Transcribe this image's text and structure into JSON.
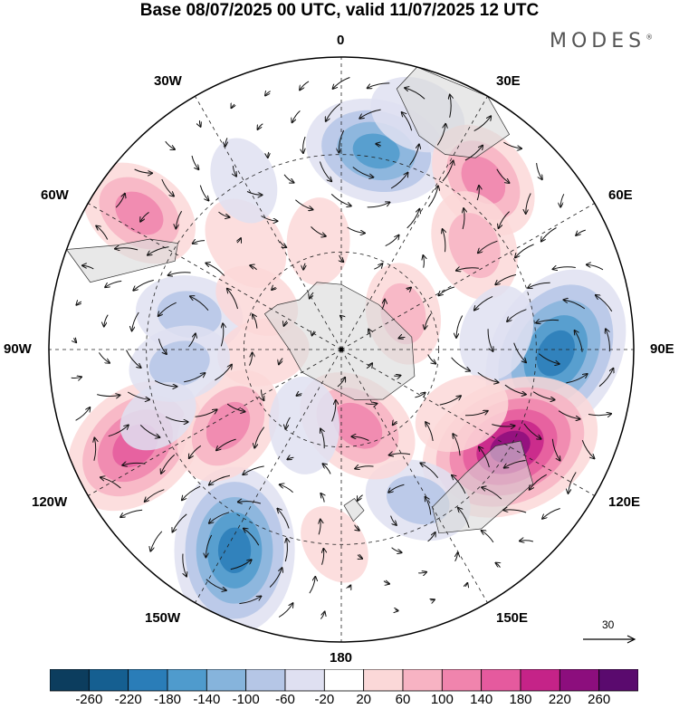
{
  "title": "Base 08/07/2025 00 UTC, valid 11/07/2025 12 UTC",
  "brand": "MODES",
  "brand_mark": "®",
  "longitude_labels": {
    "lon_0": "0",
    "lon_30e": "30E",
    "lon_60e": "60E",
    "lon_90e": "90E",
    "lon_120e": "120E",
    "lon_150e": "150E",
    "lon_180": "180",
    "lon_150w": "150W",
    "lon_120w": "120W",
    "lon_90w": "90W",
    "lon_60w": "60W",
    "lon_30w": "30W"
  },
  "reference_vector": {
    "label": "30"
  },
  "colorbar": {
    "ticks": [
      "-260",
      "-220",
      "-180",
      "-140",
      "-100",
      "-60",
      "-20",
      "20",
      "60",
      "100",
      "140",
      "180",
      "220",
      "260"
    ],
    "colors": [
      "#0c3d5e",
      "#155f91",
      "#2a7db8",
      "#4f9bcd",
      "#86b4dc",
      "#b5c6e6",
      "#dfe0f1",
      "#ffffff",
      "#fbd8d8",
      "#f7b3c3",
      "#f084ad",
      "#e55a9e",
      "#c52388",
      "#8c0e7d",
      "#5a0a6e"
    ]
  },
  "anomalies": [
    {
      "lon": 10,
      "colat": 62,
      "value": -150
    },
    {
      "lon": 18,
      "colat": 76,
      "value": -60
    },
    {
      "lon": 40,
      "colat": 68,
      "value": 110
    },
    {
      "lon": 52,
      "colat": 52,
      "value": 90
    },
    {
      "lon": 91,
      "colat": 66,
      "value": -220
    },
    {
      "lon": 84,
      "colat": 48,
      "value": -60
    },
    {
      "lon": 120,
      "colat": 60,
      "value": 230
    },
    {
      "lon": 118,
      "colat": 42,
      "value": 60
    },
    {
      "lon": 153,
      "colat": 52,
      "value": -80
    },
    {
      "lon": 168,
      "colat": 24,
      "value": 120
    },
    {
      "lon": 182,
      "colat": 60,
      "value": 30
    },
    {
      "lon": 208,
      "colat": 70,
      "value": -200
    },
    {
      "lon": 245,
      "colat": 70,
      "value": 170
    },
    {
      "lon": 236,
      "colat": 42,
      "value": 110
    },
    {
      "lon": 206,
      "colat": 26,
      "value": -60
    },
    {
      "lon": 283,
      "colat": 48,
      "value": -80
    },
    {
      "lon": 268,
      "colat": 24,
      "value": 50
    },
    {
      "lon": 304,
      "colat": 75,
      "value": 110
    },
    {
      "lon": 318,
      "colat": 44,
      "value": 60
    },
    {
      "lon": 348,
      "colat": 34,
      "value": 40
    },
    {
      "lon": 60,
      "colat": 22,
      "value": 70
    },
    {
      "lon": 330,
      "colat": 60,
      "value": -40
    },
    {
      "lon": 300,
      "colat": 30,
      "value": 40
    },
    {
      "lon": 265,
      "colat": 50,
      "value": -70
    },
    {
      "lon": 250,
      "colat": 60,
      "value": -30
    }
  ]
}
